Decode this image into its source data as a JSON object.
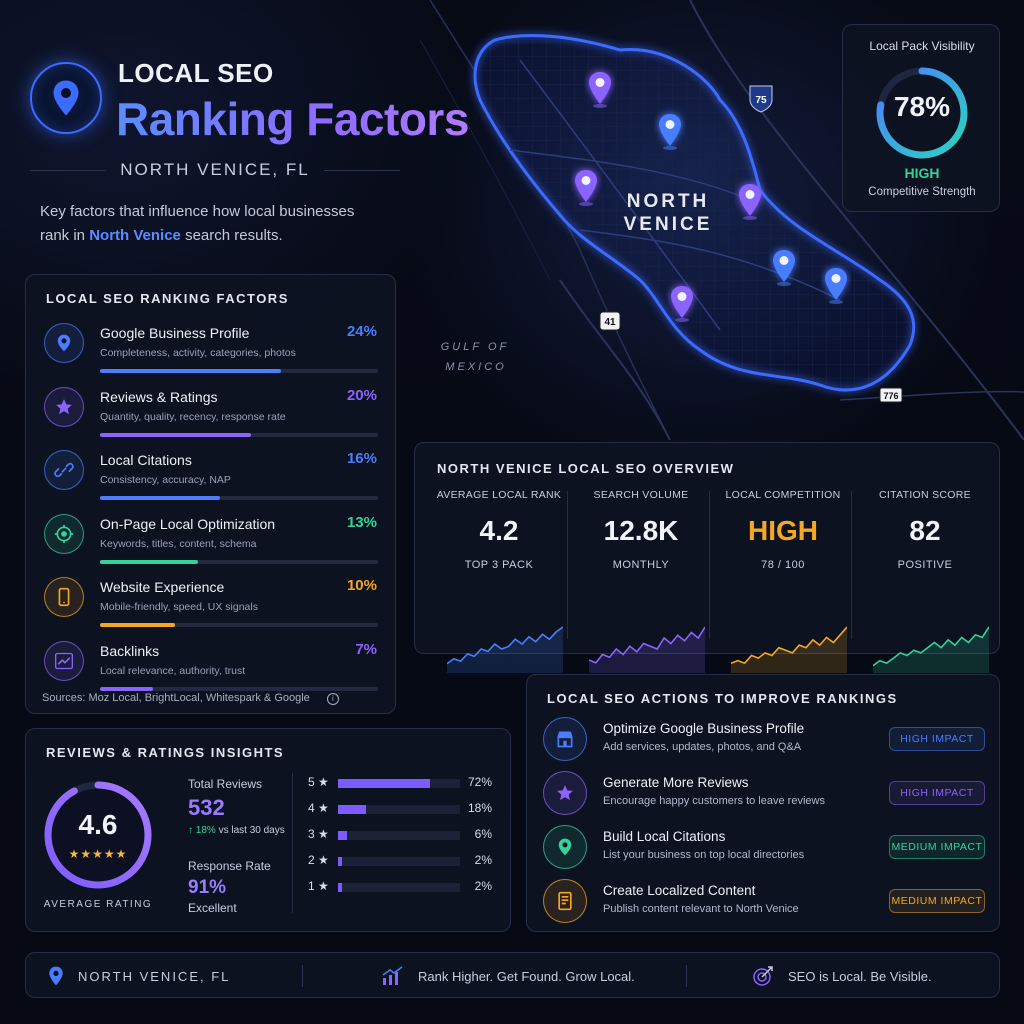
{
  "header": {
    "title_line1": "LOCAL SEO",
    "title_line2": "Ranking Factors",
    "location": "NORTH VENICE, FL",
    "intro_before": "Key factors that influence how local businesses rank in ",
    "intro_highlight": "North Venice",
    "intro_after": " search results.",
    "logo_icon": "map-pin-icon"
  },
  "factors": {
    "title": "LOCAL SEO RANKING FACTORS",
    "items": [
      {
        "name": "Google Business Profile",
        "desc": "Completeness, activity, categories, photos",
        "pct": "24%",
        "value": 24,
        "color": "#4a7dff",
        "icon": "map-pin-icon"
      },
      {
        "name": "Reviews & Ratings",
        "desc": "Quantity, quality, recency, response rate",
        "pct": "20%",
        "value": 20,
        "color": "#8b63ff",
        "icon": "star-icon"
      },
      {
        "name": "Local Citations",
        "desc": "Consistency, accuracy, NAP",
        "pct": "16%",
        "value": 16,
        "color": "#4a7dff",
        "icon": "link-icon"
      },
      {
        "name": "On-Page Local Optimization",
        "desc": "Keywords, titles, content, schema",
        "pct": "13%",
        "value": 13,
        "color": "#34d399",
        "icon": "target-icon"
      },
      {
        "name": "Website Experience",
        "desc": "Mobile-friendly, speed, UX signals",
        "pct": "10%",
        "value": 10,
        "color": "#f5a623",
        "icon": "phone-icon"
      },
      {
        "name": "Backlinks",
        "desc": "Local relevance, authority, trust",
        "pct": "7%",
        "value": 7,
        "color": "#8b63ff",
        "icon": "trend-chart-icon"
      }
    ],
    "sources": "Sources: Moz Local, BrightLocal, Whitespark & Google"
  },
  "map": {
    "label_line1": "NORTH",
    "label_line2": "VENICE",
    "gulf_line1": "GULF OF",
    "gulf_line2": "MEXICO",
    "road_75": "75",
    "road_41": "41",
    "road_776": "776"
  },
  "visibility": {
    "title": "Local Pack Visibility",
    "pct": "78%",
    "value": 78,
    "level": "HIGH",
    "subtitle": "Competitive Strength"
  },
  "overview": {
    "title": "NORTH VENICE LOCAL SEO OVERVIEW",
    "columns": [
      {
        "label": "AVERAGE LOCAL RANK",
        "value": "4.2",
        "sub": "TOP 3 PACK",
        "color": "#4a7dff",
        "value_color": "#f1f3f9"
      },
      {
        "label": "SEARCH VOLUME",
        "value": "12.8K",
        "sub": "MONTHLY",
        "color": "#8b63ff",
        "value_color": "#f1f3f9"
      },
      {
        "label": "LOCAL COMPETITION",
        "value": "HIGH",
        "sub": "78 / 100",
        "color": "#f5a623",
        "value_color": "#f5a623"
      },
      {
        "label": "CITATION SCORE",
        "value": "82",
        "sub": "POSITIVE",
        "color": "#34d399",
        "value_color": "#f1f3f9"
      }
    ]
  },
  "reviews": {
    "title": "REVIEWS & RATINGS INSIGHTS",
    "rating": "4.6",
    "rating_value": 4.6,
    "stars": "★★★★★",
    "avg_label": "AVERAGE RATING",
    "total_label": "Total Reviews",
    "total_value": "532",
    "total_change": "↑ 18%",
    "total_change_suffix": " vs last 30 days",
    "response_label": "Response Rate",
    "response_value": "91%",
    "response_note": "Excellent",
    "distribution": [
      {
        "stars": "5 ★",
        "pct": "72%",
        "value": 72
      },
      {
        "stars": "4 ★",
        "pct": "18%",
        "value": 18
      },
      {
        "stars": "3 ★",
        "pct": "6%",
        "value": 6
      },
      {
        "stars": "2 ★",
        "pct": "2%",
        "value": 2
      },
      {
        "stars": "1 ★",
        "pct": "2%",
        "value": 2
      }
    ]
  },
  "actions": {
    "title": "LOCAL SEO ACTIONS TO IMPROVE RANKINGS",
    "items": [
      {
        "title": "Optimize Google Business Profile",
        "desc": "Add services, updates, photos, and Q&A",
        "badge": "HIGH IMPACT",
        "color": "#4a7dff",
        "icon": "storefront-icon"
      },
      {
        "title": "Generate More Reviews",
        "desc": "Encourage happy customers to leave reviews",
        "badge": "HIGH IMPACT",
        "color": "#8b63ff",
        "icon": "star-icon"
      },
      {
        "title": "Build Local Citations",
        "desc": "List your business on top local directories",
        "badge": "MEDIUM IMPACT",
        "color": "#34d399",
        "icon": "map-pin-icon"
      },
      {
        "title": "Create Localized Content",
        "desc": "Publish content relevant to North Venice",
        "badge": "MEDIUM IMPACT",
        "color": "#f5a623",
        "icon": "document-icon"
      }
    ]
  },
  "footer": {
    "location": "NORTH VENICE, FL",
    "tagline": "Rank Higher. Get Found. Grow Local.",
    "motto": "SEO is Local. Be Visible."
  }
}
